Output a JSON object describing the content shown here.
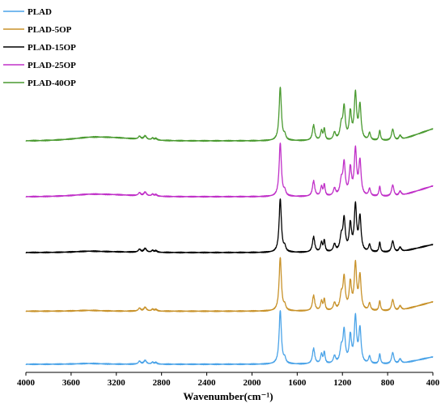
{
  "chart_data": {
    "type": "line",
    "xlabel": "Wavenumber(cm⁻¹)",
    "xlim": [
      4000,
      400
    ],
    "x_reversed": true,
    "x_ticks": [
      "4000",
      "3600",
      "3200",
      "2800",
      "2400",
      "2000",
      "1600",
      "1200",
      "800",
      "400"
    ],
    "y_ticks_shown": false,
    "grid": false,
    "legend_position": "top-left",
    "series": [
      {
        "name": "PLAD",
        "color": "#4aa3e8",
        "offset": 0
      },
      {
        "name": "PLAD-5OP",
        "color": "#c8922a",
        "offset": 0.95
      },
      {
        "name": "PLAD-15OP",
        "color": "#000000",
        "offset": 2.0
      },
      {
        "name": "PLAD-25OP",
        "color": "#c030c8",
        "offset": 3.0
      },
      {
        "name": "PLAD-40OP",
        "color": "#4a9a30",
        "offset": 4.0
      }
    ]
  }
}
